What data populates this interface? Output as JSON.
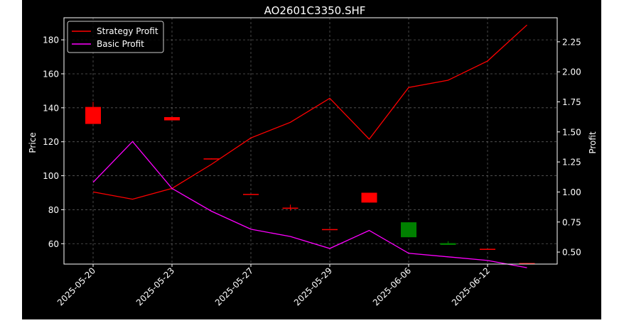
{
  "chart_data": {
    "type": "candlestick+line",
    "title": "AO2601C3350.SHF",
    "ylabel_left": "Price",
    "ylabel_right": "Profit",
    "ylim_left": [
      48,
      193
    ],
    "ylim_right": [
      0.4,
      2.45
    ],
    "yticks_left": [
      60,
      80,
      100,
      120,
      140,
      160,
      180
    ],
    "yticks_right": [
      "0.50",
      "0.75",
      "1.00",
      "1.25",
      "1.50",
      "1.75",
      "2.00",
      "2.25"
    ],
    "xtick_labels": [
      "2025-05-20",
      "2025-05-23",
      "2025-05-27",
      "2025-05-29",
      "2025-06-06",
      "2025-06-12"
    ],
    "xtick_index": [
      0,
      2,
      4,
      6,
      8,
      10
    ],
    "grid": true,
    "legend_position": "top-left",
    "colors": {
      "up": "#008000",
      "down": "#ff0000",
      "strategy": "#ff0000",
      "basic": "#ff00ff",
      "grid": "#808080"
    },
    "candles": [
      {
        "i": 0,
        "open": 140.5,
        "high": 143.5,
        "low": 130.5,
        "close": 130.5
      },
      {
        "i": 2,
        "open": 134.5,
        "high": 134.8,
        "low": 132.6,
        "close": 132.6
      },
      {
        "i": 3,
        "open": 110.2,
        "high": 110.2,
        "low": 110.0,
        "close": 110.0
      },
      {
        "i": 4,
        "open": 89.3,
        "high": 89.3,
        "low": 89.0,
        "close": 89.0
      },
      {
        "i": 5,
        "open": 81.2,
        "high": 83.0,
        "low": 79.5,
        "close": 81.0
      },
      {
        "i": 6,
        "open": 68.6,
        "high": 68.6,
        "low": 68.3,
        "close": 68.3
      },
      {
        "i": 7,
        "open": 90.0,
        "high": 90.0,
        "low": 84.2,
        "close": 84.2
      },
      {
        "i": 8,
        "open": 63.8,
        "high": 72.6,
        "low": 63.8,
        "close": 72.6
      },
      {
        "i": 9,
        "open": 59.3,
        "high": 61.5,
        "low": 59.3,
        "close": 60.3
      },
      {
        "i": 10,
        "open": 57.0,
        "high": 57.0,
        "low": 56.6,
        "close": 56.6
      },
      {
        "i": 11,
        "open": 48.6,
        "high": 48.6,
        "low": 48.3,
        "close": 48.3
      }
    ],
    "series": [
      {
        "name": "Strategy Profit",
        "x": [
          0,
          1,
          2,
          3,
          4,
          5,
          6,
          7,
          8,
          9,
          10,
          11
        ],
        "values": [
          1.0,
          0.94,
          1.03,
          1.23,
          1.45,
          1.58,
          1.78,
          1.44,
          1.87,
          1.93,
          2.09,
          2.39
        ]
      },
      {
        "name": "Basic Profit",
        "x": [
          0,
          1,
          2,
          3,
          4,
          5,
          6,
          7,
          8,
          9,
          10,
          11
        ],
        "values": [
          1.08,
          1.42,
          1.03,
          0.84,
          0.69,
          0.63,
          0.53,
          0.68,
          0.49,
          0.46,
          0.43,
          0.37
        ]
      }
    ]
  }
}
